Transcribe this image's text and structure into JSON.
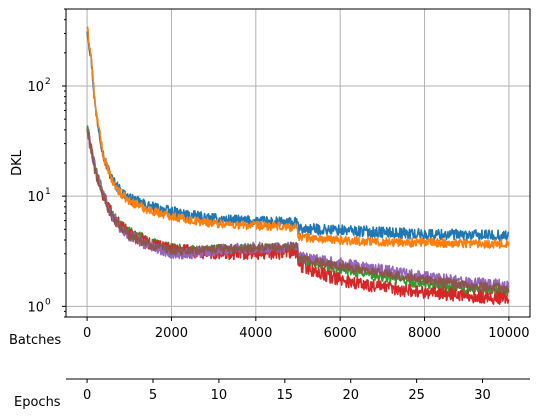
{
  "chart_data": {
    "type": "line",
    "ylabel": "DKL",
    "xlabel": "Batches",
    "secondary_xlabel": "Epochs",
    "x_ticks": [
      0,
      2000,
      4000,
      6000,
      8000,
      10000
    ],
    "x_tick_labels": [
      "0",
      "2000",
      "4000",
      "6000",
      "8000",
      "10000"
    ],
    "secondary_x_ticks": [
      0,
      5,
      10,
      15,
      20,
      25,
      30
    ],
    "secondary_x_tick_labels": [
      "0",
      "5",
      "10",
      "15",
      "20",
      "25",
      "30"
    ],
    "secondary_x_per_batch": 0.0032,
    "y_scale": "log",
    "y_ticks": [
      1,
      10,
      100
    ],
    "y_tick_labels": [
      {
        "base": "10",
        "exp": "0"
      },
      {
        "base": "10",
        "exp": "1"
      },
      {
        "base": "10",
        "exp": "2"
      }
    ],
    "xlim": [
      -500,
      10500
    ],
    "ylim": [
      0.8,
      500
    ],
    "grid": true,
    "series": [
      {
        "color": "#1f77b4",
        "x": [
          0,
          100,
          200,
          400,
          600,
          800,
          1000,
          1500,
          2000,
          2500,
          3000,
          3500,
          4000,
          4500,
          4990,
          5010,
          5500,
          6000,
          6500,
          7000,
          7500,
          8000,
          8500,
          9000,
          9500,
          10000
        ],
        "y": [
          330,
          170,
          60,
          22,
          14,
          11,
          9.5,
          8.0,
          7.2,
          6.6,
          6.2,
          6.0,
          5.9,
          5.8,
          5.7,
          5.0,
          5.0,
          4.9,
          4.8,
          4.7,
          4.6,
          4.5,
          4.5,
          4.4,
          4.4,
          4.4
        ],
        "noise": 0.05
      },
      {
        "color": "#ff7f0e",
        "x": [
          0,
          100,
          200,
          400,
          600,
          800,
          1000,
          1500,
          2000,
          2500,
          3000,
          3500,
          4000,
          4500,
          4990,
          5010,
          5500,
          6000,
          6500,
          7000,
          7500,
          8000,
          8500,
          9000,
          9500,
          10000
        ],
        "y": [
          340,
          180,
          62,
          22,
          13.5,
          10.5,
          9.0,
          7.4,
          6.6,
          6.0,
          5.7,
          5.5,
          5.4,
          5.3,
          5.2,
          4.3,
          4.1,
          4.0,
          3.9,
          3.85,
          3.8,
          3.8,
          3.75,
          3.75,
          3.7,
          3.7
        ],
        "noise": 0.04
      },
      {
        "color": "#2ca02c",
        "x": [
          0,
          100,
          200,
          400,
          600,
          800,
          1000,
          1500,
          2000,
          2500,
          3000,
          3500,
          4000,
          4500,
          4990,
          5010,
          5500,
          6000,
          6500,
          7000,
          7500,
          8000,
          8500,
          9000,
          9500,
          10000
        ],
        "y": [
          42,
          28,
          17,
          10,
          6.8,
          5.4,
          4.7,
          3.8,
          3.35,
          3.2,
          3.2,
          3.25,
          3.3,
          3.3,
          3.3,
          2.7,
          2.4,
          2.2,
          2.0,
          1.85,
          1.7,
          1.6,
          1.5,
          1.45,
          1.4,
          1.35
        ],
        "noise": 0.05
      },
      {
        "color": "#d62728",
        "x": [
          0,
          100,
          200,
          400,
          600,
          800,
          1000,
          1500,
          2000,
          2500,
          3000,
          3500,
          4000,
          4500,
          4990,
          5010,
          5500,
          6000,
          6500,
          7000,
          7500,
          8000,
          8500,
          9000,
          9500,
          10000
        ],
        "y": [
          40,
          27,
          16.5,
          9.8,
          6.7,
          5.3,
          4.6,
          3.7,
          3.3,
          3.1,
          3.05,
          3.05,
          3.05,
          3.05,
          3.05,
          2.4,
          2.0,
          1.75,
          1.6,
          1.5,
          1.4,
          1.35,
          1.3,
          1.25,
          1.2,
          1.2
        ],
        "noise": 0.06
      },
      {
        "color": "#9467bd",
        "x": [
          0,
          100,
          200,
          400,
          600,
          800,
          1000,
          1500,
          2000,
          2500,
          3000,
          3500,
          4000,
          4500,
          4990,
          5010,
          5500,
          6000,
          6500,
          7000,
          7500,
          8000,
          8500,
          9000,
          9500,
          10000
        ],
        "y": [
          41,
          27,
          16.5,
          9.8,
          6.6,
          5.1,
          4.4,
          3.5,
          3.05,
          3.0,
          3.2,
          3.35,
          3.4,
          3.45,
          3.45,
          2.8,
          2.6,
          2.45,
          2.3,
          2.15,
          2.0,
          1.85,
          1.75,
          1.65,
          1.6,
          1.55
        ],
        "noise": 0.05
      },
      {
        "color": "#8c564b",
        "x": [
          0,
          100,
          200,
          400,
          600,
          800,
          1000,
          1500,
          2000,
          2500,
          3000,
          3500,
          4000,
          4500,
          4990,
          5010,
          5500,
          6000,
          6500,
          7000,
          7500,
          8000,
          8500,
          9000,
          9500,
          10000
        ],
        "y": [
          40,
          26,
          16,
          9.6,
          6.5,
          5.1,
          4.4,
          3.6,
          3.2,
          3.2,
          3.3,
          3.35,
          3.4,
          3.45,
          3.45,
          2.7,
          2.5,
          2.3,
          2.15,
          2.0,
          1.85,
          1.75,
          1.65,
          1.55,
          1.5,
          1.45
        ],
        "noise": 0.04
      }
    ]
  }
}
